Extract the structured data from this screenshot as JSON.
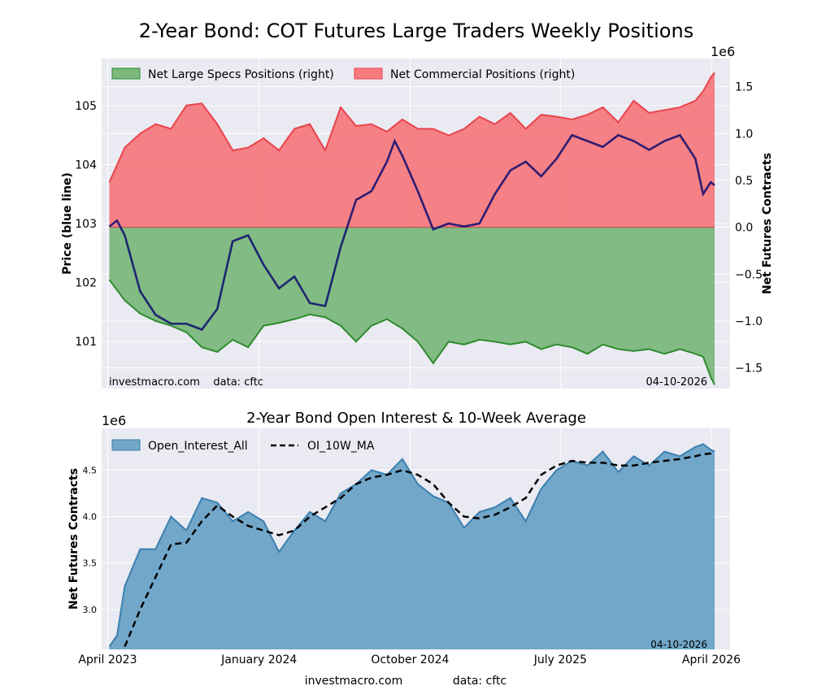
{
  "page": {
    "title": "2-Year Bond: COT Futures Large Traders Weekly Positions",
    "footer_site": "investmacro.com",
    "footer_source": "data: cftc"
  },
  "colors": {
    "axes_bg": "#eaeaf2",
    "specs_fill": "#7cb87c",
    "specs_line": "#2e8b2e",
    "comm_fill": "#f67a7e",
    "comm_line": "#e8444b",
    "price_line": "#0d0a6e",
    "oi_fill": "#72a7c9",
    "oi_line": "#3a80b0",
    "ma_line": "#000000"
  },
  "chart_data": [
    {
      "type": "area",
      "title": "",
      "ylabel_left": "Price (blue line)",
      "ylabel_right": "Net Futures Contracts",
      "right_scale_label": "1e6",
      "x_range": [
        "2023-03-21",
        "2026-05-05"
      ],
      "x_tick_labels": [
        {
          "date": "2023-04-01",
          "label": "April 2023"
        },
        {
          "date": "2024-01-01",
          "label": "January 2024"
        },
        {
          "date": "2024-10-01",
          "label": "October 2024"
        },
        {
          "date": "2025-07-01",
          "label": "July 2025"
        },
        {
          "date": "2026-04-01",
          "label": "April 2026"
        }
      ],
      "ylim_left": [
        100.2,
        105.8
      ],
      "ylim_right": [
        -1.72,
        1.8
      ],
      "left_ticks": [
        101,
        102,
        103,
        104,
        105
      ],
      "right_ticks": [
        -1.5,
        -1.0,
        -0.5,
        0.0,
        0.5,
        1.0,
        1.5
      ],
      "right_tick_labels": [
        "−1.5",
        "−1.0",
        "−0.5",
        "0.0",
        "0.5",
        "1.0",
        "1.5"
      ],
      "legend_position": "top-left",
      "annotation_left": "investmacro.com    data: cftc",
      "annotation_right": "04-10-2026",
      "series": [
        {
          "name": "Net Large Specs Positions (right)",
          "axis": "right",
          "dates": [
            "2023-04-04",
            "2023-05-02",
            "2023-05-30",
            "2023-06-27",
            "2023-07-25",
            "2023-08-22",
            "2023-09-19",
            "2023-10-17",
            "2023-11-14",
            "2023-12-12",
            "2024-01-09",
            "2024-02-06",
            "2024-03-05",
            "2024-04-02",
            "2024-04-30",
            "2024-05-28",
            "2024-06-25",
            "2024-07-23",
            "2024-08-20",
            "2024-09-17",
            "2024-10-15",
            "2024-11-12",
            "2024-12-10",
            "2025-01-07",
            "2025-02-04",
            "2025-03-04",
            "2025-04-01",
            "2025-04-29",
            "2025-05-27",
            "2025-06-24",
            "2025-07-22",
            "2025-08-19",
            "2025-09-16",
            "2025-10-14",
            "2025-11-11",
            "2025-12-09",
            "2026-01-06",
            "2026-02-03",
            "2026-03-03",
            "2026-03-17",
            "2026-03-31",
            "2026-04-07"
          ],
          "values": [
            -0.56,
            -0.78,
            -0.92,
            -1.0,
            -1.05,
            -1.12,
            -1.28,
            -1.33,
            -1.2,
            -1.28,
            -1.05,
            -1.02,
            -0.98,
            -0.93,
            -0.96,
            -1.05,
            -1.22,
            -1.05,
            -0.98,
            -1.08,
            -1.22,
            -1.45,
            -1.22,
            -1.25,
            -1.2,
            -1.22,
            -1.25,
            -1.22,
            -1.3,
            -1.25,
            -1.28,
            -1.35,
            -1.25,
            -1.3,
            -1.32,
            -1.3,
            -1.35,
            -1.3,
            -1.35,
            -1.38,
            -1.6,
            -1.68
          ]
        },
        {
          "name": "Net Commercial Positions (right)",
          "axis": "right",
          "dates": [
            "2023-04-04",
            "2023-05-02",
            "2023-05-30",
            "2023-06-27",
            "2023-07-25",
            "2023-08-22",
            "2023-09-19",
            "2023-10-17",
            "2023-11-14",
            "2023-12-12",
            "2024-01-09",
            "2024-02-06",
            "2024-03-05",
            "2024-04-02",
            "2024-04-30",
            "2024-05-28",
            "2024-06-25",
            "2024-07-23",
            "2024-08-20",
            "2024-09-17",
            "2024-10-15",
            "2024-11-12",
            "2024-12-10",
            "2025-01-07",
            "2025-02-04",
            "2025-03-04",
            "2025-04-01",
            "2025-04-29",
            "2025-05-27",
            "2025-06-24",
            "2025-07-22",
            "2025-08-19",
            "2025-09-16",
            "2025-10-14",
            "2025-11-11",
            "2025-12-09",
            "2026-01-06",
            "2026-02-03",
            "2026-03-03",
            "2026-03-17",
            "2026-03-31",
            "2026-04-07"
          ],
          "values": [
            0.48,
            0.85,
            1.0,
            1.1,
            1.05,
            1.3,
            1.32,
            1.1,
            0.82,
            0.85,
            0.95,
            0.82,
            1.05,
            1.1,
            0.82,
            1.28,
            1.08,
            1.1,
            1.02,
            1.15,
            1.05,
            1.05,
            0.98,
            1.05,
            1.18,
            1.1,
            1.22,
            1.05,
            1.2,
            1.18,
            1.15,
            1.2,
            1.28,
            1.12,
            1.35,
            1.22,
            1.25,
            1.28,
            1.35,
            1.45,
            1.6,
            1.65
          ]
        },
        {
          "name": "",
          "axis": "left",
          "dates": [
            "2023-04-04",
            "2023-04-18",
            "2023-05-02",
            "2023-05-30",
            "2023-06-27",
            "2023-07-25",
            "2023-08-22",
            "2023-09-19",
            "2023-10-17",
            "2023-11-14",
            "2023-12-12",
            "2024-01-09",
            "2024-02-06",
            "2024-03-05",
            "2024-04-02",
            "2024-04-30",
            "2024-05-28",
            "2024-06-25",
            "2024-07-23",
            "2024-08-20",
            "2024-09-03",
            "2024-09-17",
            "2024-10-15",
            "2024-11-12",
            "2024-12-10",
            "2025-01-07",
            "2025-02-04",
            "2025-03-04",
            "2025-04-01",
            "2025-04-29",
            "2025-05-27",
            "2025-06-24",
            "2025-07-22",
            "2025-08-19",
            "2025-09-16",
            "2025-10-14",
            "2025-11-11",
            "2025-12-09",
            "2026-01-06",
            "2026-02-03",
            "2026-03-03",
            "2026-03-17",
            "2026-03-31",
            "2026-04-07"
          ],
          "values": [
            102.95,
            103.05,
            102.8,
            101.85,
            101.45,
            101.3,
            101.3,
            101.2,
            101.55,
            102.7,
            102.8,
            102.3,
            101.9,
            102.1,
            101.65,
            101.6,
            102.6,
            103.4,
            103.55,
            104.05,
            104.4,
            104.15,
            103.55,
            102.9,
            103.0,
            102.95,
            103.0,
            103.5,
            103.9,
            104.05,
            103.8,
            104.1,
            104.5,
            104.4,
            104.3,
            104.5,
            104.4,
            104.25,
            104.4,
            104.5,
            104.1,
            103.5,
            103.7,
            103.65
          ]
        }
      ]
    },
    {
      "type": "area",
      "title": "2-Year Bond Open Interest & 10-Week Average",
      "ylabel": "Net Futures Contracts",
      "scale_label": "1e6",
      "x_range": [
        "2023-03-21",
        "2026-05-05"
      ],
      "x_tick_labels": [
        {
          "date": "2023-04-01",
          "label": "April 2023"
        },
        {
          "date": "2024-01-01",
          "label": "January 2024"
        },
        {
          "date": "2024-10-01",
          "label": "October 2024"
        },
        {
          "date": "2025-07-01",
          "label": "July 2025"
        },
        {
          "date": "2026-04-01",
          "label": "April 2026"
        }
      ],
      "ylim": [
        2.57,
        4.95
      ],
      "y_ticks": [
        3.0,
        3.5,
        4.0,
        4.5
      ],
      "legend_position": "top-left",
      "annotation_right": "04-10-2026",
      "series": [
        {
          "name": "Open_Interest_All",
          "dates": [
            "2023-04-04",
            "2023-04-18",
            "2023-05-02",
            "2023-05-30",
            "2023-06-27",
            "2023-07-25",
            "2023-08-22",
            "2023-09-19",
            "2023-10-17",
            "2023-11-14",
            "2023-12-12",
            "2024-01-09",
            "2024-02-06",
            "2024-03-05",
            "2024-04-02",
            "2024-04-30",
            "2024-05-28",
            "2024-06-25",
            "2024-07-23",
            "2024-08-20",
            "2024-09-17",
            "2024-10-15",
            "2024-11-12",
            "2024-12-10",
            "2025-01-07",
            "2025-02-04",
            "2025-03-04",
            "2025-04-01",
            "2025-04-29",
            "2025-05-27",
            "2025-06-24",
            "2025-07-22",
            "2025-08-19",
            "2025-09-16",
            "2025-10-14",
            "2025-11-11",
            "2025-12-09",
            "2026-01-06",
            "2026-02-03",
            "2026-03-03",
            "2026-03-17",
            "2026-03-31",
            "2026-04-07"
          ],
          "values": [
            2.6,
            2.72,
            3.25,
            3.65,
            3.65,
            4.0,
            3.85,
            4.2,
            4.15,
            3.95,
            4.05,
            3.95,
            3.62,
            3.85,
            4.05,
            3.95,
            4.25,
            4.35,
            4.5,
            4.45,
            4.62,
            4.35,
            4.22,
            4.15,
            3.88,
            4.05,
            4.1,
            4.2,
            3.95,
            4.3,
            4.5,
            4.6,
            4.55,
            4.7,
            4.48,
            4.65,
            4.55,
            4.7,
            4.65,
            4.75,
            4.78,
            4.72,
            4.7
          ]
        },
        {
          "name": "OI_10W_MA",
          "dates": [
            "2023-05-02",
            "2023-05-30",
            "2023-06-27",
            "2023-07-25",
            "2023-08-22",
            "2023-09-19",
            "2023-10-17",
            "2023-11-14",
            "2023-12-12",
            "2024-01-09",
            "2024-02-06",
            "2024-03-05",
            "2024-04-02",
            "2024-04-30",
            "2024-05-28",
            "2024-06-25",
            "2024-07-23",
            "2024-08-20",
            "2024-09-17",
            "2024-10-15",
            "2024-11-12",
            "2024-12-10",
            "2025-01-07",
            "2025-02-04",
            "2025-03-04",
            "2025-04-01",
            "2025-04-29",
            "2025-05-27",
            "2025-06-24",
            "2025-07-22",
            "2025-08-19",
            "2025-09-16",
            "2025-10-14",
            "2025-11-11",
            "2025-12-09",
            "2026-01-06",
            "2026-02-03",
            "2026-03-03",
            "2026-03-17",
            "2026-03-31",
            "2026-04-07"
          ],
          "values": [
            2.6,
            3.0,
            3.35,
            3.7,
            3.72,
            3.95,
            4.12,
            4.0,
            3.9,
            3.85,
            3.8,
            3.85,
            4.0,
            4.1,
            4.2,
            4.35,
            4.42,
            4.45,
            4.5,
            4.45,
            4.35,
            4.15,
            4.0,
            3.98,
            4.02,
            4.1,
            4.2,
            4.45,
            4.55,
            4.6,
            4.58,
            4.58,
            4.55,
            4.55,
            4.58,
            4.6,
            4.62,
            4.65,
            4.67,
            4.68,
            4.7
          ]
        }
      ]
    }
  ]
}
